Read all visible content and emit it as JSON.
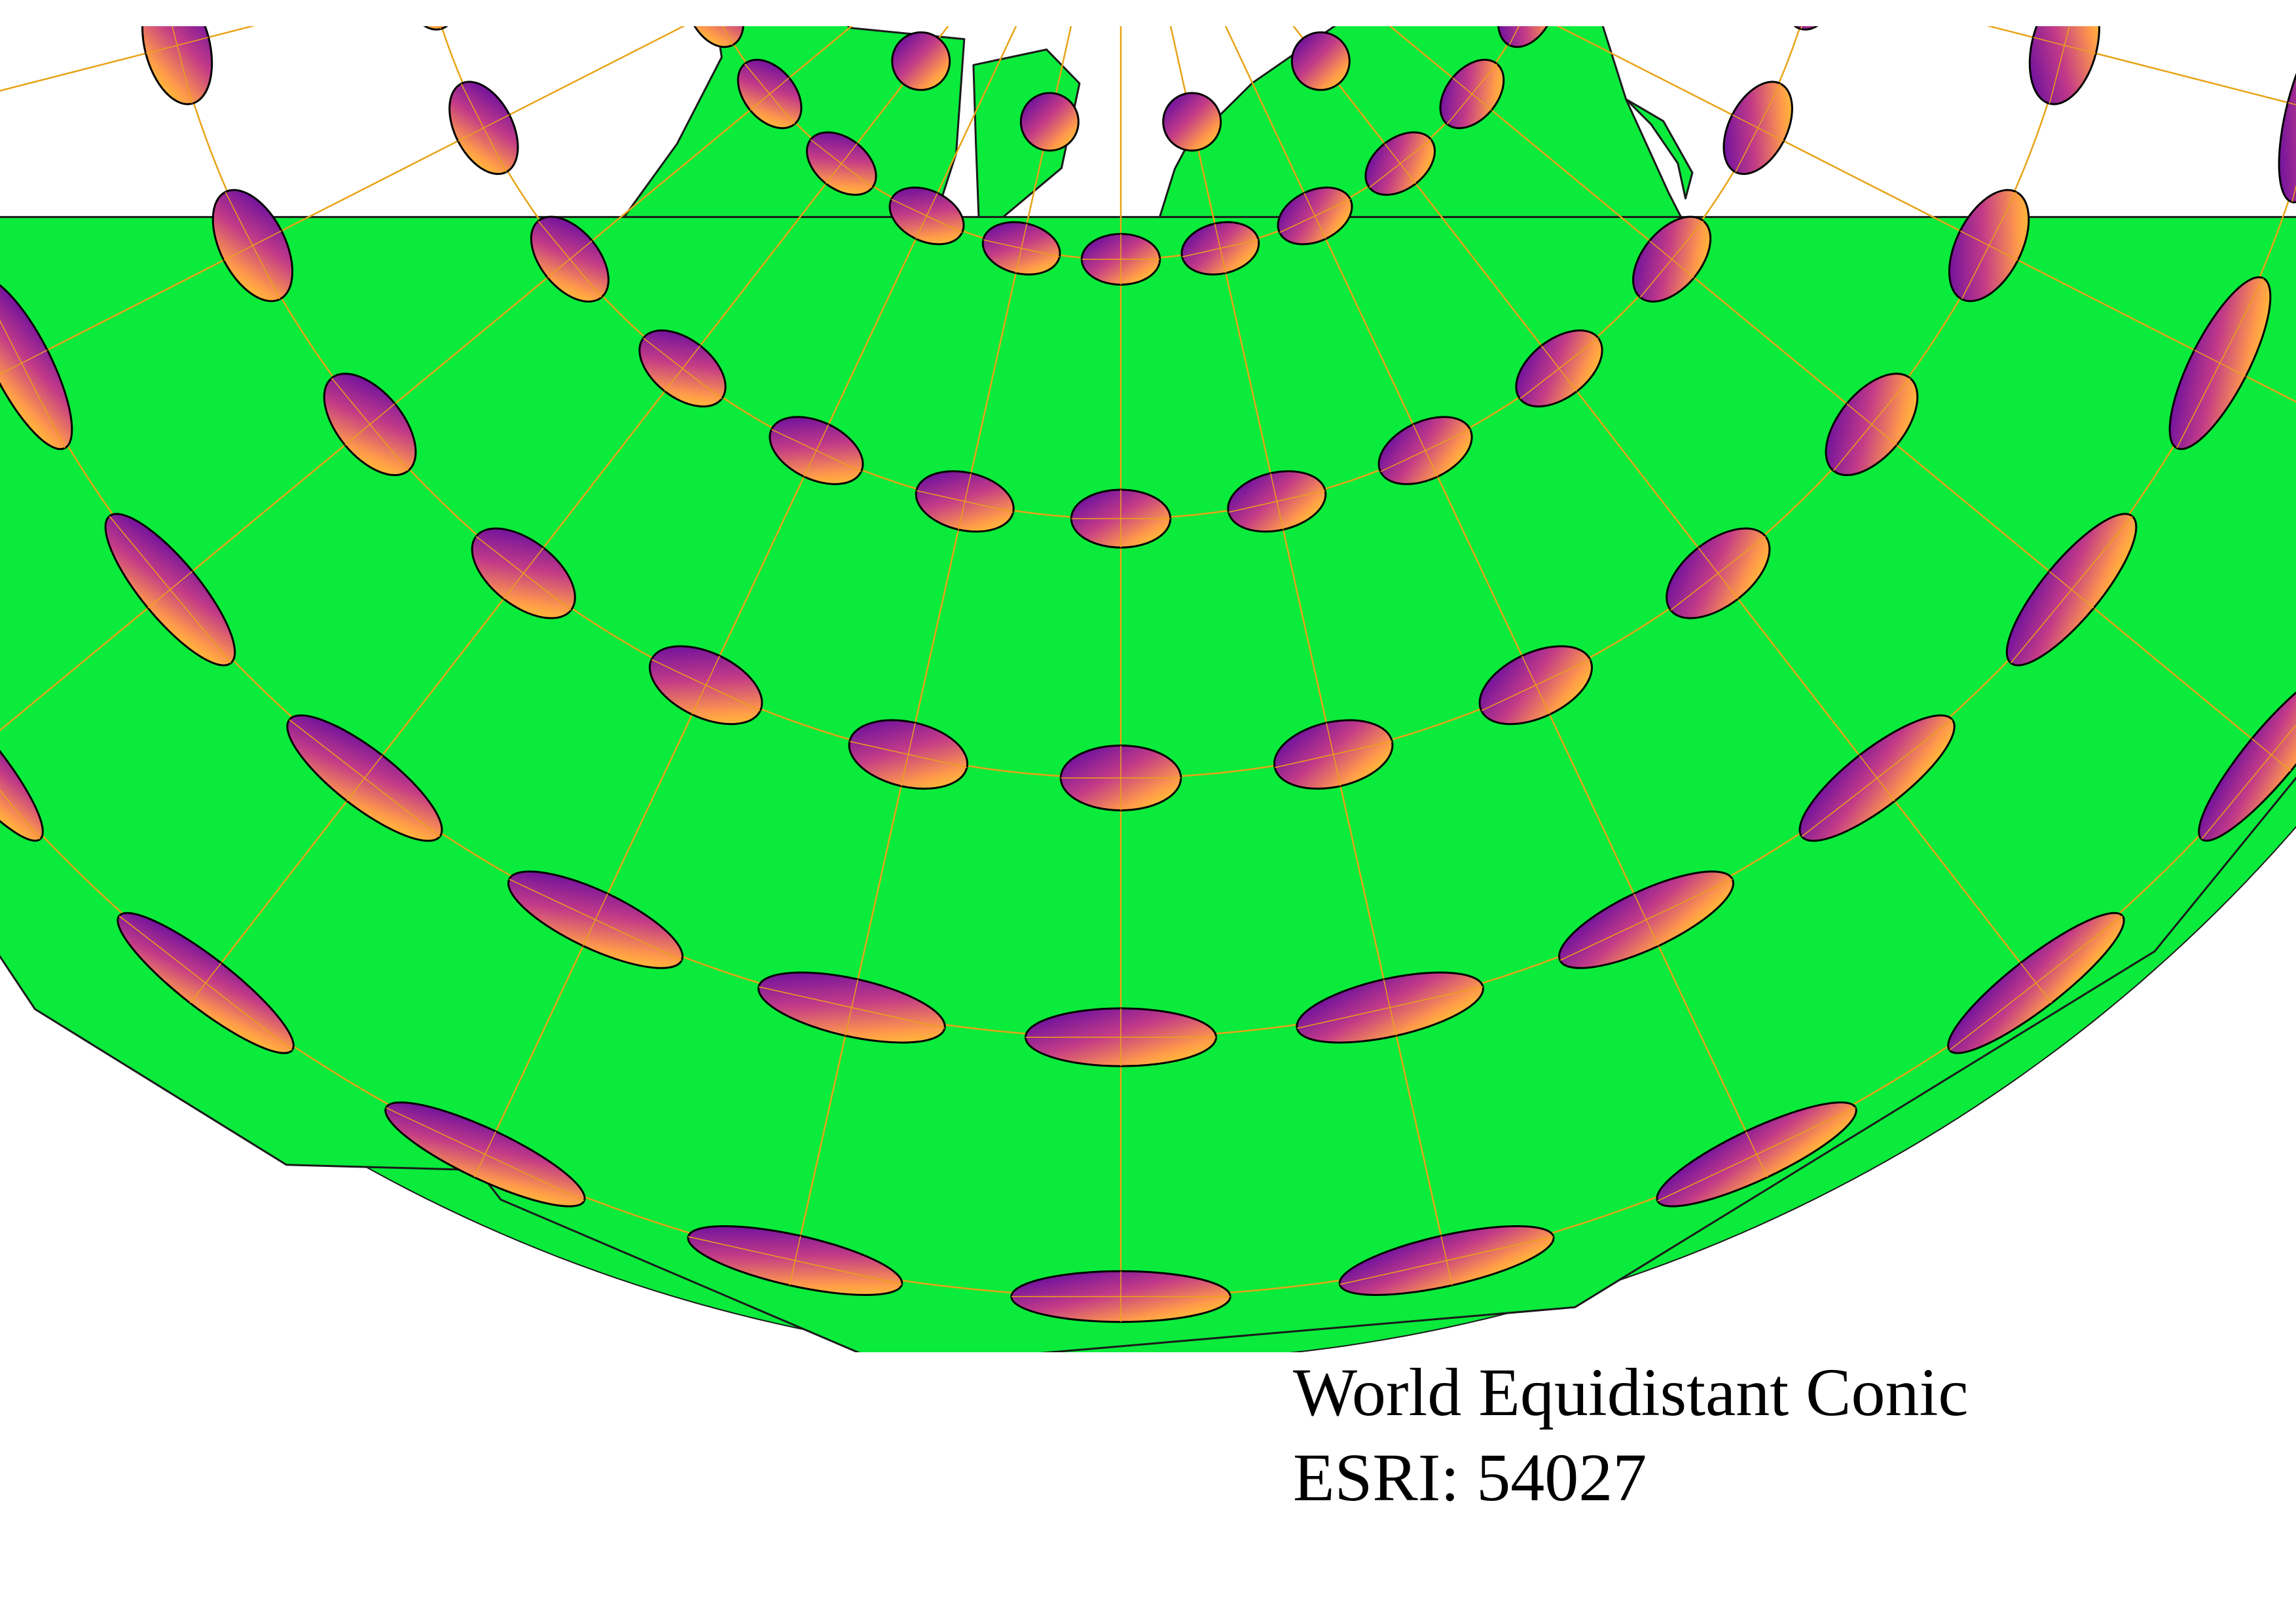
{
  "caption": {
    "title": "World Equidistant Conic",
    "code": "ESRI: 54027"
  },
  "colors": {
    "land": "#0aeb3c",
    "coastline": "#1a1a1a",
    "graticule": "#e8a317",
    "ellipse_gradient": [
      "#4c00a8",
      "#c33b87",
      "#ff9a4a",
      "#ffe120"
    ],
    "ellipse_outline": "#000000",
    "background": "#ffffff"
  },
  "map": {
    "projection": "World Equidistant Conic",
    "graticule": {
      "parallels_deg": [
        -60,
        -30,
        0,
        30,
        60,
        90
      ],
      "meridians_deg": [
        -180,
        -150,
        -120,
        -90,
        -60,
        -30,
        0,
        30,
        60,
        90,
        120,
        150,
        180
      ]
    },
    "indicatrix": {
      "type": "tissot",
      "count": 66
    }
  }
}
